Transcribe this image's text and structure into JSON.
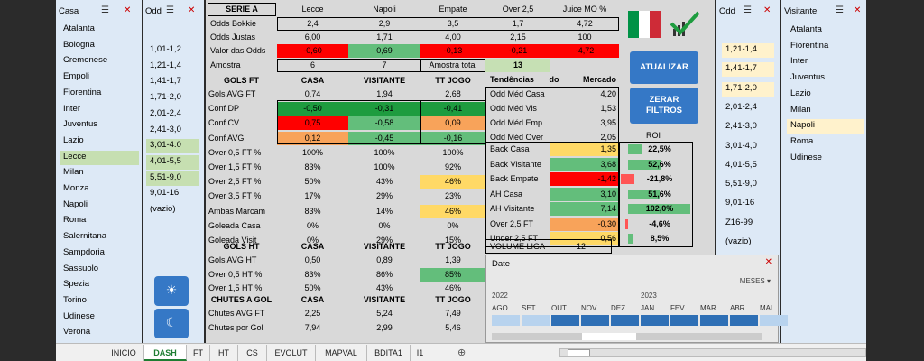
{
  "left_slicer": {
    "title": "Casa",
    "items": [
      "Atalanta",
      "Bologna",
      "Cremonese",
      "Empoli",
      "Fiorentina",
      "Inter",
      "Juventus",
      "Lazio",
      "Lecce",
      "Milan",
      "Monza",
      "Napoli",
      "Roma",
      "Salernitana",
      "Sampdoria",
      "Sassuolo",
      "Spezia",
      "Torino",
      "Udinese",
      "Verona"
    ],
    "selected": "Lecce"
  },
  "left_odd": {
    "title": "Odd",
    "items": [
      "1,01-1,2",
      "1,21-1,4",
      "1,41-1,7",
      "1,71-2,0",
      "2,01-2,4",
      "2,41-3,0",
      "3,01-4.0",
      "4,01-5,5",
      "5,51-9,0",
      "9,01-16",
      "(vazio)"
    ],
    "selected": [
      "3,01-4.0",
      "4,01-5,5",
      "5,51-9,0"
    ]
  },
  "right_odd": {
    "title": "Odd",
    "items": [
      "1,21-1,4",
      "1,41-1,7",
      "1,71-2,0",
      "2,01-2,4",
      "2,41-3,0",
      "3,01-4,0",
      "4,01-5,5",
      "5,51-9,0",
      "9,01-16",
      "Z16-99",
      "(vazio)"
    ],
    "selected": [
      "1,21-1,4",
      "1,41-1,7",
      "1,71-2,0"
    ]
  },
  "right_slicer": {
    "title": "Visitante",
    "items": [
      "Atalanta",
      "Fiorentina",
      "Inter",
      "Juventus",
      "Lazio",
      "Milan",
      "Napoli",
      "Roma",
      "Udinese"
    ],
    "selected": "Napoli"
  },
  "top": {
    "league": "SERIE A",
    "home": "Lecce",
    "away": "Napoli",
    "draw": "Empate",
    "over": "Over 2,5",
    "juice": "Juice MO %",
    "rows": [
      {
        "label": "Odds Bokkie",
        "v": [
          "2,4",
          "2,9",
          "3,5",
          "1,7",
          "4,72"
        ]
      },
      {
        "label": "Odds Justas",
        "v": [
          "6,00",
          "1,71",
          "4,00",
          "2,15",
          "100"
        ]
      },
      {
        "label": "Valor das Odds",
        "v": [
          "-0,60",
          "0,69",
          "-0,13",
          "-0,21",
          "-4,72"
        ]
      }
    ],
    "amostra_label": "Amostra",
    "amostra": [
      "6",
      "7"
    ],
    "amostra_total_label": "Amostra total",
    "amostra_total": "13"
  },
  "gols_ft": {
    "header": [
      "GOLS FT",
      "CASA",
      "VISITANTE",
      "TT JOGO"
    ],
    "rows": [
      [
        "Gols AVG FT",
        "0,74",
        "1,94",
        "2,68"
      ],
      [
        "Conf DP",
        "-0,50",
        "-0,31",
        "-0,41"
      ],
      [
        "Conf CV",
        "0,75",
        "-0,58",
        "0,09"
      ],
      [
        "Conf AVG",
        "0,12",
        "-0,45",
        "-0,16"
      ],
      [
        "Over 0,5 FT %",
        "100%",
        "100%",
        "100%"
      ],
      [
        "Over 1,5 FT %",
        "83%",
        "100%",
        "92%"
      ],
      [
        "Over 2,5 FT %",
        "50%",
        "43%",
        "46%"
      ],
      [
        "Over 3,5 FT %",
        "17%",
        "29%",
        "23%"
      ],
      [
        "Ambas Marcam",
        "83%",
        "14%",
        "46%"
      ],
      [
        "Goleada Casa",
        "0%",
        "0%",
        "0%"
      ],
      [
        "Goleada Visit",
        "0%",
        "29%",
        "15%"
      ]
    ]
  },
  "gols_ht": {
    "header": [
      "GOLS HT",
      "CASA",
      "VISITANTE",
      "TT JOGO"
    ],
    "rows": [
      [
        "Gols AVG HT",
        "0,50",
        "0,89",
        "1,39"
      ],
      [
        "Over 0,5 HT %",
        "83%",
        "86%",
        "85%"
      ],
      [
        "Over 1,5 HT %",
        "50%",
        "43%",
        "46%"
      ]
    ]
  },
  "chutes": {
    "header": [
      "CHUTES A GOL",
      "CASA",
      "VISITANTE",
      "TT JOGO"
    ],
    "rows": [
      [
        "Chutes AVG FT",
        "2,25",
        "5,24",
        "7,49"
      ],
      [
        "Chutes por Gol",
        "7,94",
        "2,99",
        "5,46"
      ]
    ]
  },
  "tendencias": {
    "title": "Tendências",
    "do": "do",
    "mercado": "Mercado",
    "rows": [
      [
        "Odd Méd Casa",
        "4,20"
      ],
      [
        "Odd Méd Vis",
        "1,53"
      ],
      [
        "Odd Méd Emp",
        "3,95"
      ],
      [
        "Odd Méd Over",
        "2,05"
      ]
    ],
    "roi_label": "ROI"
  },
  "roi": {
    "rows": [
      [
        "Back Casa",
        "1,35",
        "22,5%"
      ],
      [
        "Back Visitante",
        "3,68",
        "52,6%"
      ],
      [
        "Back Empate",
        "-1,42",
        "-21,8%"
      ],
      [
        "AH Casa",
        "3,10",
        "51,6%"
      ],
      [
        "AH Visitante",
        "7,14",
        "102,0%"
      ],
      [
        "Over 2,5 FT",
        "-0,30",
        "-4,6%"
      ],
      [
        "Under 2,5 FT",
        "0,56",
        "8,5%"
      ]
    ],
    "roi_pct": [
      0.225,
      0.526,
      -0.218,
      0.516,
      1.02,
      -0.046,
      0.085
    ]
  },
  "volume": {
    "label": "VOLUME LIGA",
    "value": "12"
  },
  "buttons": {
    "update": "ATUALIZAR",
    "clear_line1": "ZERAR",
    "clear_line2": "FILTROS"
  },
  "timeline": {
    "title": "Date",
    "period": "MESES",
    "year1": "2022",
    "year2": "2023",
    "months": [
      "AGO",
      "SET",
      "OUT",
      "NOV",
      "DEZ",
      "JAN",
      "FEV",
      "MAR",
      "ABR",
      "MAI"
    ],
    "selected_from": "OUT",
    "selected_to": "ABR"
  },
  "tabs": [
    "INICIO",
    "DASH",
    "FT",
    "HT",
    "CS",
    "EVOLUT",
    "MAPVAL",
    "BDITA1",
    "I1"
  ],
  "active_tab": "DASH",
  "colors": {
    "green_dark": "#1e9c3f",
    "green": "#63be7b",
    "green_light": "#c6e0b4",
    "red": "#ff0000",
    "orange": "#f8a35a",
    "yellow": "#ffd966",
    "blue": "#3578c6"
  }
}
